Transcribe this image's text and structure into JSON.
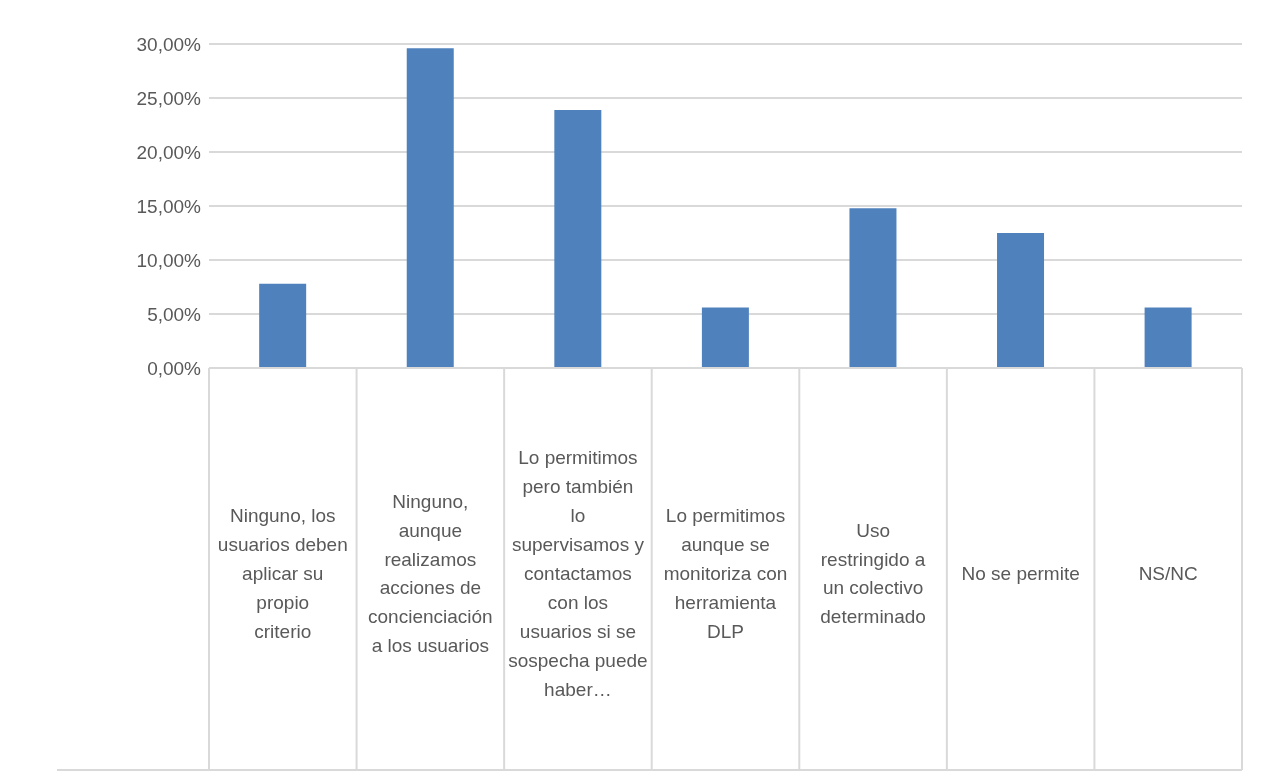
{
  "chart_data": {
    "type": "bar",
    "categories": [
      "Ninguno, los usuarios deben aplicar su propio criterio",
      "Ninguno, aunque realizamos acciones de concienciación a los usuarios",
      "Lo permitimos pero también lo supervisamos y contactamos con los usuarios si se sospecha puede haber…",
      "Lo permitimos aunque se monitoriza con herramienta DLP",
      "Uso restringido a un colectivo determinado",
      "No se permite",
      "NS/NC"
    ],
    "values": [
      7.8,
      29.6,
      23.9,
      5.6,
      14.8,
      12.5,
      5.6
    ],
    "color": "#4f81bd",
    "ylim": [
      0,
      30
    ],
    "yticks": [
      {
        "value": 0,
        "label": "0,00%"
      },
      {
        "value": 5,
        "label": "5,00%"
      },
      {
        "value": 10,
        "label": "10,00%"
      },
      {
        "value": 15,
        "label": "15,00%"
      },
      {
        "value": 20,
        "label": "20,00%"
      },
      {
        "value": 25,
        "label": "25,00%"
      },
      {
        "value": 30,
        "label": "30,00%"
      }
    ],
    "grid": "y"
  }
}
